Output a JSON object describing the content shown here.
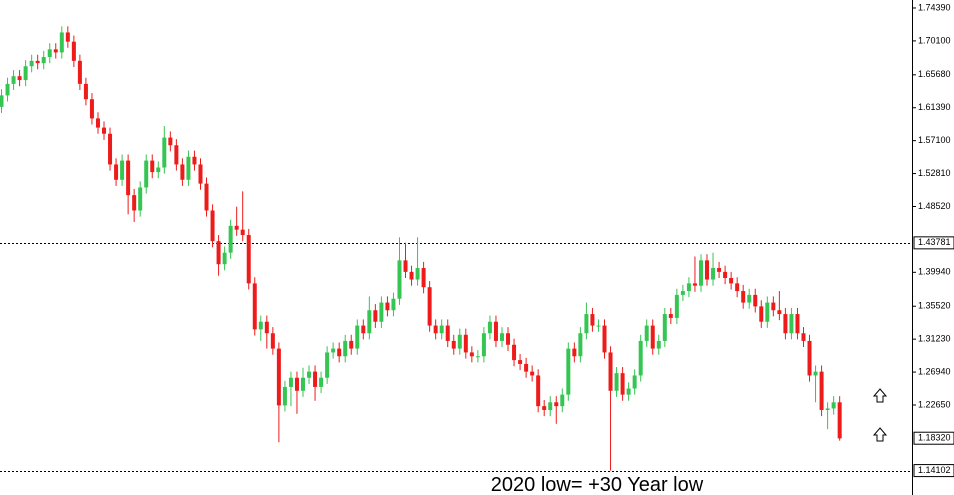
{
  "chart_data": {
    "type": "candlestick",
    "up_color": "#35c552",
    "down_color": "#ee1b1b",
    "ylim": [
      1.1092,
      1.7543
    ],
    "yticks": [
      {
        "value": 1.7439,
        "label": "1.74390"
      },
      {
        "value": 1.701,
        "label": "1.70100"
      },
      {
        "value": 1.6568,
        "label": "1.65680"
      },
      {
        "value": 1.6139,
        "label": "1.61390"
      },
      {
        "value": 1.571,
        "label": "1.57100"
      },
      {
        "value": 1.5281,
        "label": "1.52810"
      },
      {
        "value": 1.4852,
        "label": "1.48520"
      },
      {
        "value": 1.3994,
        "label": "1.39940"
      },
      {
        "value": 1.3552,
        "label": "1.35520"
      },
      {
        "value": 1.3123,
        "label": "1.31230"
      },
      {
        "value": 1.2694,
        "label": "1.26940"
      },
      {
        "value": 1.2265,
        "label": "1.22650"
      }
    ],
    "hlines": [
      1.43781,
      1.14102
    ],
    "last_price": {
      "value": 1.1832,
      "label": "1.18320"
    },
    "annotation": "2020 low= +30 Year low",
    "open": [
      1.615,
      1.63,
      1.645,
      1.655,
      1.65,
      1.668,
      1.675,
      1.672,
      1.68,
      1.69,
      1.686,
      1.712,
      1.7,
      1.675,
      1.645,
      1.625,
      1.6,
      1.588,
      1.58,
      1.54,
      1.52,
      1.545,
      1.5,
      1.48,
      1.51,
      1.545,
      1.53,
      1.536,
      1.575,
      1.565,
      1.54,
      1.52,
      1.55,
      1.54,
      1.515,
      1.48,
      1.44,
      1.41,
      1.425,
      1.46,
      1.455,
      1.448,
      1.385,
      1.325,
      1.335,
      1.32,
      1.3,
      1.226,
      1.25,
      1.262,
      1.245,
      1.262,
      1.27,
      1.25,
      1.262,
      1.295,
      1.3,
      1.29,
      1.31,
      1.3,
      1.33,
      1.32,
      1.35,
      1.335,
      1.36,
      1.35,
      1.365,
      1.415,
      1.4,
      1.39,
      1.405,
      1.38,
      1.33,
      1.32,
      1.33,
      1.31,
      1.3,
      1.318,
      1.295,
      1.29,
      1.29,
      1.32,
      1.335,
      1.31,
      1.32,
      1.305,
      1.285,
      1.28,
      1.27,
      1.265,
      1.225,
      1.22,
      1.23,
      1.225,
      1.24,
      1.3,
      1.29,
      1.32,
      1.345,
      1.33,
      1.33,
      1.295,
      1.245,
      1.268,
      1.24,
      1.248,
      1.265,
      1.31,
      1.33,
      1.3,
      1.31,
      1.345,
      1.34,
      1.37,
      1.375,
      1.385,
      1.382,
      1.415,
      1.39,
      1.405,
      1.4,
      1.392,
      1.385,
      1.375,
      1.36,
      1.37,
      1.355,
      1.335,
      1.36,
      1.35,
      1.345,
      1.32,
      1.345,
      1.32,
      1.31,
      1.265,
      1.27,
      1.22,
      1.222,
      1.23
    ],
    "high": [
      1.638,
      1.653,
      1.663,
      1.663,
      1.676,
      1.683,
      1.683,
      1.688,
      1.698,
      1.698,
      1.72,
      1.72,
      1.708,
      1.683,
      1.653,
      1.633,
      1.608,
      1.596,
      1.588,
      1.548,
      1.553,
      1.553,
      1.508,
      1.518,
      1.553,
      1.553,
      1.544,
      1.59,
      1.583,
      1.573,
      1.548,
      1.558,
      1.558,
      1.548,
      1.523,
      1.488,
      1.448,
      1.433,
      1.468,
      1.485,
      1.505,
      1.456,
      1.393,
      1.343,
      1.343,
      1.328,
      1.308,
      1.258,
      1.27,
      1.27,
      1.275,
      1.278,
      1.278,
      1.27,
      1.303,
      1.308,
      1.308,
      1.318,
      1.318,
      1.338,
      1.338,
      1.368,
      1.358,
      1.368,
      1.368,
      1.373,
      1.445,
      1.438,
      1.408,
      1.445,
      1.413,
      1.388,
      1.338,
      1.338,
      1.338,
      1.318,
      1.326,
      1.326,
      1.303,
      1.298,
      1.328,
      1.343,
      1.343,
      1.328,
      1.328,
      1.313,
      1.293,
      1.288,
      1.278,
      1.273,
      1.233,
      1.238,
      1.238,
      1.248,
      1.308,
      1.308,
      1.328,
      1.36,
      1.353,
      1.338,
      1.338,
      1.303,
      1.276,
      1.276,
      1.256,
      1.273,
      1.318,
      1.338,
      1.338,
      1.318,
      1.353,
      1.353,
      1.378,
      1.383,
      1.393,
      1.42,
      1.423,
      1.423,
      1.425,
      1.413,
      1.408,
      1.4,
      1.393,
      1.383,
      1.378,
      1.378,
      1.363,
      1.368,
      1.368,
      1.375,
      1.353,
      1.353,
      1.353,
      1.328,
      1.318,
      1.278,
      1.278,
      1.23,
      1.238,
      1.238
    ],
    "low": [
      1.607,
      1.622,
      1.637,
      1.642,
      1.642,
      1.66,
      1.664,
      1.664,
      1.672,
      1.678,
      1.678,
      1.692,
      1.667,
      1.637,
      1.617,
      1.592,
      1.58,
      1.572,
      1.532,
      1.512,
      1.512,
      1.475,
      1.465,
      1.472,
      1.502,
      1.522,
      1.522,
      1.528,
      1.557,
      1.532,
      1.512,
      1.512,
      1.532,
      1.507,
      1.472,
      1.432,
      1.395,
      1.402,
      1.417,
      1.447,
      1.44,
      1.377,
      1.317,
      1.31,
      1.3,
      1.292,
      1.178,
      1.218,
      1.225,
      1.215,
      1.237,
      1.254,
      1.232,
      1.242,
      1.254,
      1.287,
      1.282,
      1.282,
      1.292,
      1.292,
      1.312,
      1.312,
      1.327,
      1.327,
      1.342,
      1.342,
      1.357,
      1.392,
      1.382,
      1.382,
      1.372,
      1.322,
      1.312,
      1.312,
      1.302,
      1.292,
      1.292,
      1.287,
      1.282,
      1.282,
      1.282,
      1.312,
      1.302,
      1.302,
      1.297,
      1.277,
      1.272,
      1.262,
      1.257,
      1.217,
      1.212,
      1.212,
      1.202,
      1.217,
      1.232,
      1.282,
      1.282,
      1.312,
      1.322,
      1.322,
      1.287,
      1.141,
      1.237,
      1.232,
      1.232,
      1.24,
      1.257,
      1.302,
      1.292,
      1.292,
      1.302,
      1.332,
      1.332,
      1.362,
      1.367,
      1.374,
      1.374,
      1.382,
      1.382,
      1.392,
      1.384,
      1.377,
      1.367,
      1.352,
      1.352,
      1.347,
      1.327,
      1.327,
      1.342,
      1.337,
      1.312,
      1.312,
      1.312,
      1.302,
      1.257,
      1.23,
      1.212,
      1.195,
      1.214,
      1.18
    ],
    "close": [
      1.63,
      1.645,
      1.655,
      1.65,
      1.668,
      1.675,
      1.672,
      1.68,
      1.69,
      1.686,
      1.712,
      1.7,
      1.675,
      1.645,
      1.625,
      1.6,
      1.588,
      1.58,
      1.54,
      1.52,
      1.545,
      1.5,
      1.48,
      1.51,
      1.545,
      1.53,
      1.536,
      1.575,
      1.565,
      1.54,
      1.52,
      1.55,
      1.54,
      1.515,
      1.48,
      1.44,
      1.41,
      1.425,
      1.46,
      1.455,
      1.448,
      1.385,
      1.325,
      1.335,
      1.32,
      1.3,
      1.226,
      1.25,
      1.262,
      1.245,
      1.262,
      1.27,
      1.25,
      1.262,
      1.295,
      1.3,
      1.29,
      1.31,
      1.3,
      1.33,
      1.32,
      1.35,
      1.335,
      1.36,
      1.35,
      1.365,
      1.415,
      1.4,
      1.39,
      1.405,
      1.38,
      1.33,
      1.32,
      1.33,
      1.31,
      1.3,
      1.318,
      1.295,
      1.29,
      1.29,
      1.32,
      1.335,
      1.31,
      1.32,
      1.305,
      1.285,
      1.28,
      1.27,
      1.265,
      1.225,
      1.22,
      1.23,
      1.225,
      1.24,
      1.3,
      1.29,
      1.32,
      1.345,
      1.33,
      1.33,
      1.295,
      1.245,
      1.268,
      1.24,
      1.248,
      1.265,
      1.31,
      1.33,
      1.3,
      1.31,
      1.345,
      1.34,
      1.37,
      1.375,
      1.385,
      1.382,
      1.415,
      1.39,
      1.405,
      1.4,
      1.392,
      1.385,
      1.375,
      1.36,
      1.37,
      1.355,
      1.335,
      1.36,
      1.35,
      1.345,
      1.32,
      1.345,
      1.32,
      1.31,
      1.265,
      1.27,
      1.22,
      1.222,
      1.23,
      1.183
    ]
  }
}
